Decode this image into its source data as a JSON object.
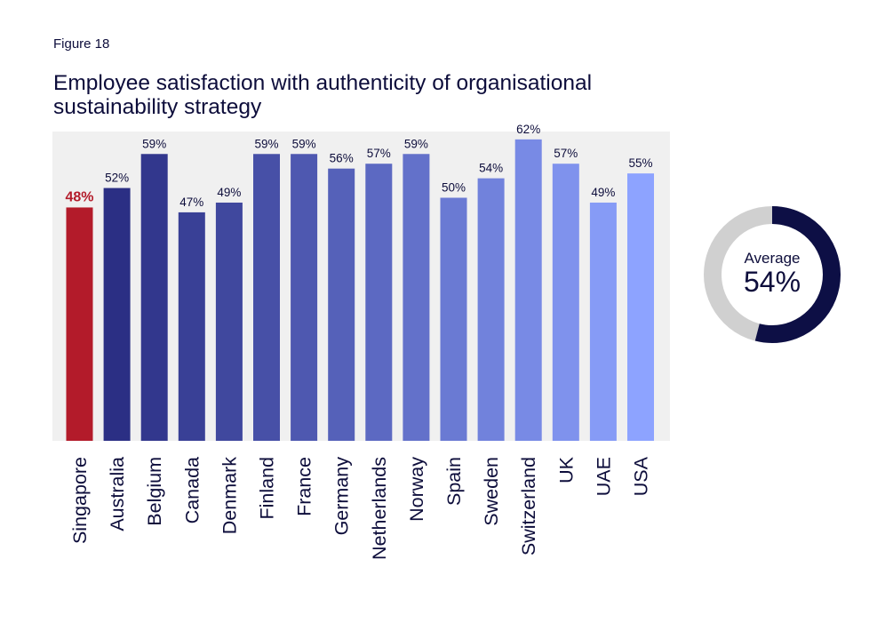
{
  "figure_label": "Figure 18",
  "colors": {
    "highlight": "#b31b2a",
    "bar_start": "#2b2f84",
    "bar_end": "#8da3ff",
    "plot_bg": "#f0f0f0",
    "donut_filled": "#0d0f45",
    "donut_track": "#d0d0d0",
    "text": "#0d0d3b"
  },
  "chart_data": {
    "type": "bar",
    "title": "Employee satisfaction with authenticity of organisational sustainability strategy",
    "categories": [
      "Singapore",
      "Australia",
      "Belgium",
      "Canada",
      "Denmark",
      "Finland",
      "France",
      "Germany",
      "Netherlands",
      "Norway",
      "Spain",
      "Sweden",
      "Switzerland",
      "UK",
      "UAE",
      "USA"
    ],
    "values": [
      48,
      52,
      59,
      47,
      49,
      59,
      59,
      56,
      57,
      59,
      50,
      54,
      62,
      57,
      49,
      55
    ],
    "value_labels": [
      "48%",
      "52%",
      "59%",
      "47%",
      "49%",
      "59%",
      "59%",
      "56%",
      "57%",
      "59%",
      "50%",
      "54%",
      "62%",
      "57%",
      "49%",
      "55%"
    ],
    "highlight_category": "Singapore",
    "ylim": [
      0,
      100
    ],
    "xlabel": "",
    "ylabel": "",
    "grid": false
  },
  "average": {
    "label": "Average",
    "value_text": "54%",
    "value": 54
  }
}
